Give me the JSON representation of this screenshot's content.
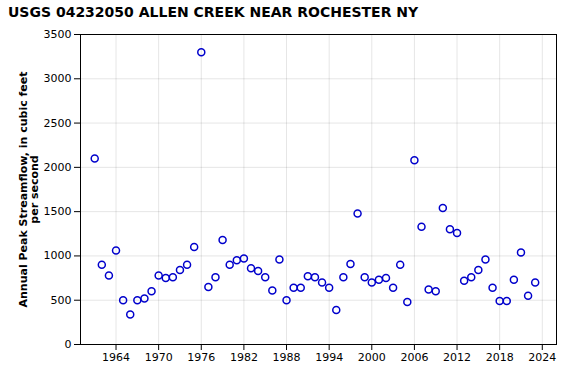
{
  "chart_data": {
    "type": "scatter",
    "title": "USGS 04232050 ALLEN CREEK NEAR ROCHESTER NY",
    "ylabel": "Annual Peak Streamflow, in cubic feet\nper second",
    "x": [
      1961,
      1962,
      1963,
      1964,
      1965,
      1966,
      1967,
      1968,
      1969,
      1970,
      1971,
      1972,
      1973,
      1974,
      1975,
      1976,
      1977,
      1978,
      1979,
      1980,
      1981,
      1982,
      1983,
      1984,
      1985,
      1986,
      1987,
      1988,
      1989,
      1990,
      1991,
      1992,
      1993,
      1994,
      1995,
      1996,
      1997,
      1998,
      1999,
      2000,
      2001,
      2002,
      2003,
      2004,
      2005,
      2006,
      2007,
      2008,
      2009,
      2010,
      2011,
      2012,
      2013,
      2014,
      2015,
      2016,
      2017,
      2018,
      2019,
      2020,
      2021,
      2022,
      2023
    ],
    "values": [
      2100,
      900,
      780,
      1060,
      500,
      340,
      500,
      520,
      600,
      780,
      750,
      760,
      840,
      900,
      1100,
      3300,
      650,
      760,
      1180,
      900,
      950,
      970,
      860,
      830,
      760,
      610,
      960,
      500,
      640,
      640,
      770,
      760,
      700,
      640,
      390,
      760,
      910,
      1480,
      760,
      700,
      730,
      750,
      640,
      900,
      480,
      2080,
      1330,
      620,
      600,
      1540,
      1300,
      1260,
      720,
      760,
      840,
      960,
      640,
      490,
      490,
      730,
      1040,
      550,
      700
    ],
    "xlim": [
      1959,
      2026
    ],
    "ylim": [
      0,
      3500
    ],
    "xticks": [
      1964,
      1970,
      1976,
      1982,
      1988,
      1994,
      2000,
      2006,
      2012,
      2018,
      2024
    ],
    "yticks": [
      0,
      500,
      1000,
      1500,
      2000,
      2500,
      3000,
      3500
    ],
    "color": "#0000cc",
    "marker": "circle",
    "grid": true
  }
}
